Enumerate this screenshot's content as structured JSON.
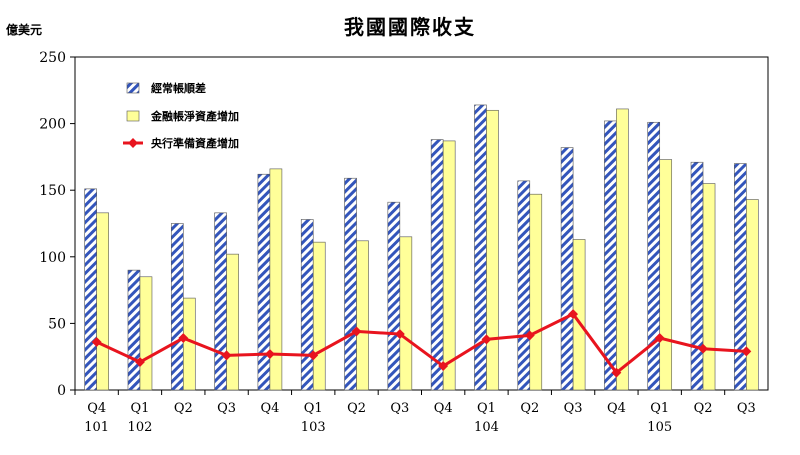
{
  "chart_data": {
    "type": "bar",
    "title": "我國國際收支",
    "ylabel": "億美元",
    "ylim": [
      0,
      250
    ],
    "yticks": [
      0,
      50,
      100,
      150,
      200,
      250
    ],
    "grid": false,
    "legend_position": "top-left",
    "categories": [
      {
        "quarter": "Q4",
        "year": "101"
      },
      {
        "quarter": "Q1",
        "year": "102"
      },
      {
        "quarter": "Q2",
        "year": ""
      },
      {
        "quarter": "Q3",
        "year": ""
      },
      {
        "quarter": "Q4",
        "year": ""
      },
      {
        "quarter": "Q1",
        "year": "103"
      },
      {
        "quarter": "Q2",
        "year": ""
      },
      {
        "quarter": "Q3",
        "year": ""
      },
      {
        "quarter": "Q4",
        "year": ""
      },
      {
        "quarter": "Q1",
        "year": "104"
      },
      {
        "quarter": "Q2",
        "year": ""
      },
      {
        "quarter": "Q3",
        "year": ""
      },
      {
        "quarter": "Q4",
        "year": ""
      },
      {
        "quarter": "Q1",
        "year": "105"
      },
      {
        "quarter": "Q2",
        "year": ""
      },
      {
        "quarter": "Q3",
        "year": ""
      }
    ],
    "series": [
      {
        "name": "經常帳順差",
        "kind": "bar",
        "pattern": "diagonal-hatch",
        "color": "#3355bb",
        "values": [
          151,
          90,
          125,
          133,
          162,
          128,
          159,
          141,
          188,
          214,
          157,
          182,
          202,
          201,
          171,
          170
        ]
      },
      {
        "name": "金融帳淨資產增加",
        "kind": "bar",
        "color": "#ffff99",
        "values": [
          133,
          85,
          69,
          102,
          166,
          111,
          112,
          115,
          187,
          210,
          147,
          113,
          211,
          173,
          155,
          143
        ]
      },
      {
        "name": "央行準備資產增加",
        "kind": "line",
        "color": "#e8141e",
        "values": [
          36,
          21,
          39,
          26,
          27,
          26,
          44,
          42,
          18,
          38,
          41,
          57,
          13,
          39,
          31,
          29
        ]
      }
    ]
  }
}
